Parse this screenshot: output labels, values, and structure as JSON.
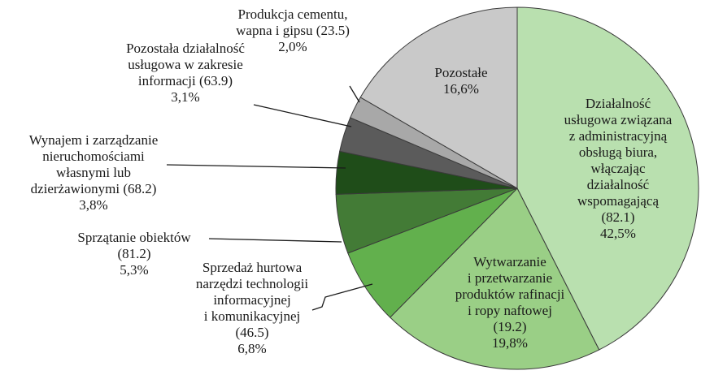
{
  "chart_data": {
    "type": "pie",
    "categories": [
      "Działalność\nusługowa związana\nz administracyjną\nobsługą biura,\nwłączając\ndziałalność\nwspomagającą\n(82.1)",
      "Wytwarzanie\ni przetwarzanie\nproduktów rafinacji\ni ropy naftowej\n(19.2)",
      "Sprzedaż hurtowa\nnarzędzi technologii\ninformacyjnej\ni komunikacyjnej\n(46.5)",
      "Sprzątanie obiektów\n(81.2)",
      "Wynajem i zarządzanie\nnieruchomościami\nwłasnymi lub\ndzierżawionymi (68.2)",
      "Pozostała działalność\nusługowa w zakresie\ninformacji (63.9)",
      "Produkcja cementu,\nwapna i gipsu (23.5)",
      "Pozostałe"
    ],
    "values": [
      42.5,
      19.8,
      6.8,
      5.3,
      3.8,
      3.1,
      2.0,
      16.6
    ],
    "value_labels": [
      "42,5%",
      "19,8%",
      "6,8%",
      "5,3%",
      "3,8%",
      "3,1%",
      "2,0%",
      "16,6%"
    ],
    "colors": [
      "#b9e0af",
      "#9acf86",
      "#62b04d",
      "#437b36",
      "#1f4d19",
      "#5b5b5b",
      "#a8a8a8",
      "#c9c9c9"
    ]
  }
}
